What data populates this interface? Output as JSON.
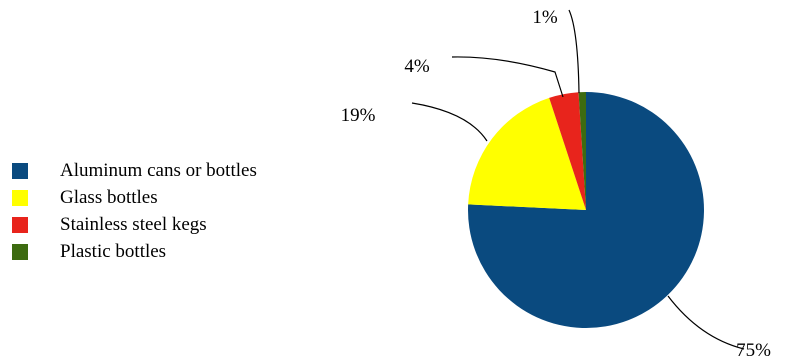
{
  "chart_data": {
    "type": "pie",
    "title": "",
    "legend_position": "left",
    "slices": [
      {
        "label": "Aluminum cans or bottles",
        "value": 75,
        "value_label": "75%",
        "color": "#0a4a7f"
      },
      {
        "label": "Glass bottles",
        "value": 19,
        "value_label": "19%",
        "color": "#ffff00"
      },
      {
        "label": "Stainless steel kegs",
        "value": 4,
        "value_label": "4%",
        "color": "#e8241c"
      },
      {
        "label": "Plastic bottles",
        "value": 1,
        "value_label": "1%",
        "color": "#3d6b10"
      }
    ]
  }
}
